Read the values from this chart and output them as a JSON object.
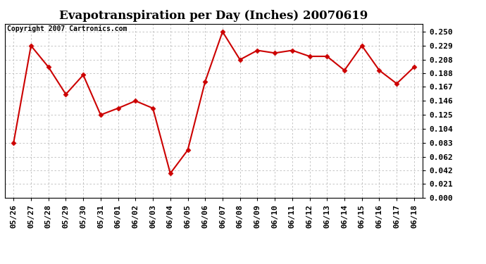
{
  "title": "Evapotranspiration per Day (Inches) 20070619",
  "copyright_text": "Copyright 2007 Cartronics.com",
  "x_labels": [
    "05/26",
    "05/27",
    "05/28",
    "05/29",
    "05/30",
    "05/31",
    "06/01",
    "06/02",
    "06/03",
    "06/04",
    "06/05",
    "06/06",
    "06/07",
    "06/08",
    "06/09",
    "06/10",
    "06/11",
    "06/12",
    "06/13",
    "06/14",
    "06/15",
    "06/16",
    "06/17",
    "06/18"
  ],
  "y_values": [
    0.083,
    0.229,
    0.197,
    0.156,
    0.185,
    0.125,
    0.135,
    0.146,
    0.135,
    0.037,
    0.072,
    0.175,
    0.25,
    0.208,
    0.222,
    0.218,
    0.222,
    0.213,
    0.213,
    0.192,
    0.229,
    0.192,
    0.172,
    0.197
  ],
  "line_color": "#cc0000",
  "marker_color": "#cc0000",
  "bg_color": "#ffffff",
  "grid_color": "#bbbbbb",
  "y_ticks": [
    0.0,
    0.021,
    0.042,
    0.062,
    0.083,
    0.104,
    0.125,
    0.146,
    0.167,
    0.188,
    0.208,
    0.229,
    0.25
  ],
  "ylim": [
    0.0,
    0.262
  ],
  "title_fontsize": 12,
  "tick_fontsize": 8,
  "copyright_fontsize": 7
}
